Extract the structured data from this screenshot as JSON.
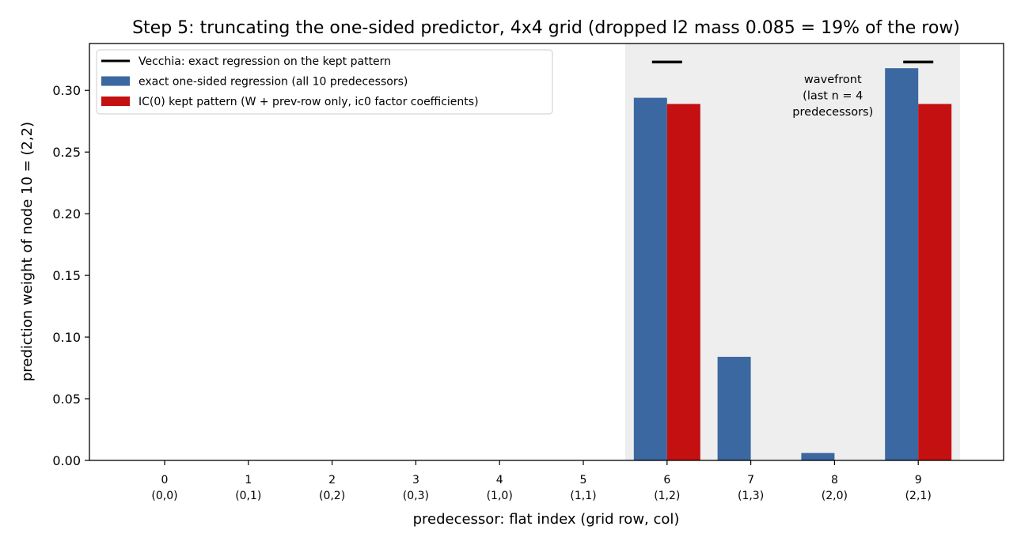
{
  "chart_data": {
    "type": "bar",
    "title": "Step 5: truncating the one-sided predictor, 4x4 grid (dropped l2 mass 0.085 = 19% of the row)",
    "xlabel": "predecessor: flat index (grid row, col)",
    "ylabel": "prediction weight of node 10 = (2,2)",
    "categories": [
      "0",
      "1",
      "2",
      "3",
      "4",
      "5",
      "6",
      "7",
      "8",
      "9"
    ],
    "category_sublabels": [
      "(0,0)",
      "(0,1)",
      "(0,2)",
      "(0,3)",
      "(1,0)",
      "(1,1)",
      "(1,2)",
      "(1,3)",
      "(2,0)",
      "(2,1)"
    ],
    "ylim": [
      0,
      0.338
    ],
    "yticks": [
      "0.00",
      "0.05",
      "0.10",
      "0.15",
      "0.20",
      "0.25",
      "0.30"
    ],
    "series": [
      {
        "name": "exact one-sided regression (all 10 predecessors)",
        "kind": "bar",
        "color": "#3b68a0",
        "values": [
          0,
          0,
          0,
          0,
          0,
          0,
          0.294,
          0.084,
          0.006,
          0.318
        ]
      },
      {
        "name": "IC(0) kept pattern (W + prev-row only, ic0 factor coefficients)",
        "kind": "bar",
        "color": "#c41010",
        "values": [
          0,
          0,
          0,
          0,
          0,
          0,
          0.289,
          0,
          0,
          0.289
        ]
      },
      {
        "name": "Vecchia: exact regression on the kept pattern",
        "kind": "segment",
        "color": "#000000",
        "points": [
          {
            "x": 6,
            "y": 0.323
          },
          {
            "x": 9,
            "y": 0.323
          }
        ]
      }
    ],
    "legend_order": [
      2,
      0,
      1
    ],
    "legend_position": "top-left",
    "shaded_region": {
      "x_from": 5.5,
      "x_to": 9.5,
      "color": "#eeeeee"
    },
    "annotation": [
      "wavefront",
      "(last n = 4",
      "predecessors)"
    ],
    "grid": false
  }
}
